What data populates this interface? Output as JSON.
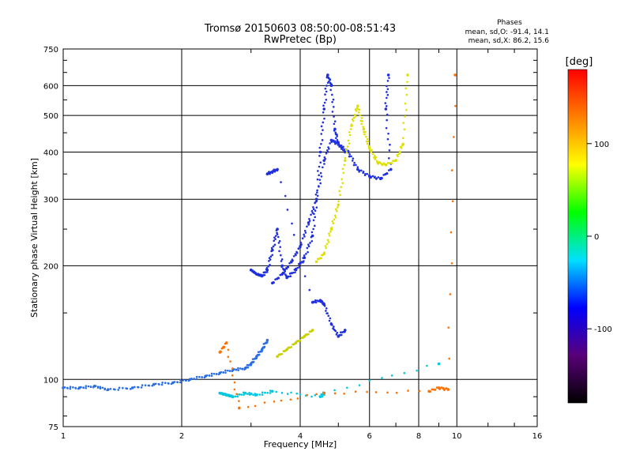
{
  "chart_data": {
    "type": "scatter",
    "title": "Tromsø 20150603 08:50:00-08:51:43",
    "subtitle": "RwPretec (Bp)",
    "xlabel": "Frequency [MHz]",
    "ylabel": "Stationary phase Virtual Height [km]",
    "x_scale": "log",
    "y_scale": "log",
    "xlim": [
      1,
      16
    ],
    "ylim": [
      75,
      750
    ],
    "x_ticks": [
      "1",
      "2",
      "4",
      "6",
      "8",
      "10",
      "16"
    ],
    "y_ticks": [
      "75",
      "100",
      "200",
      "300",
      "400",
      "500",
      "600",
      "750"
    ],
    "grid": true,
    "stats": {
      "heading": "Phases",
      "line_o": "mean, sd,O: -91.4, 14.1",
      "line_x": "mean, sd,X:  86.2, 15.6"
    },
    "colorbar": {
      "label": "[deg]",
      "range": [
        -180,
        180
      ],
      "ticks": [
        "100",
        "0",
        "-100"
      ],
      "colors": [
        "#000000",
        "#5a007a",
        "#0000ff",
        "#00e0ff",
        "#00ff00",
        "#ffff00",
        "#ff8000",
        "#ff0000"
      ]
    },
    "series": [
      {
        "phase": -100,
        "color": "#2a6ee6",
        "x": [
          1.0,
          1.1,
          1.2,
          1.3,
          1.5,
          1.7,
          1.9,
          2.1,
          2.3,
          2.5,
          2.7,
          2.9,
          3.0,
          3.1,
          3.2,
          3.3
        ],
        "y": [
          95,
          95,
          96,
          94,
          95,
          97,
          98,
          100,
          102,
          104,
          106,
          107,
          110,
          115,
          120,
          127
        ]
      },
      {
        "phase": -100,
        "color": "#1c2ee0",
        "x": [
          3.0,
          3.1,
          3.2,
          3.3,
          3.4,
          3.5,
          3.6,
          3.7,
          3.9,
          4.1,
          4.3,
          4.4,
          4.5,
          4.6,
          4.7,
          4.8,
          4.9,
          5.0,
          5.2
        ],
        "y": [
          195,
          190,
          188,
          195,
          220,
          250,
          200,
          186,
          195,
          210,
          240,
          300,
          400,
          520,
          640,
          600,
          460,
          420,
          400
        ]
      },
      {
        "phase": -100,
        "color": "#2030e0",
        "x": [
          3.4,
          3.6,
          3.8,
          4.0,
          4.2,
          4.4,
          4.6,
          4.8,
          5.0,
          5.3,
          5.6,
          6.0,
          6.4,
          6.8,
          6.6,
          6.7
        ],
        "y": [
          180,
          190,
          205,
          225,
          260,
          300,
          380,
          430,
          420,
          400,
          360,
          345,
          340,
          360,
          520,
          640
        ]
      },
      {
        "phase": 110,
        "color": "#e0e000",
        "x": [
          4.4,
          4.6,
          4.8,
          5.0,
          5.2,
          5.4,
          5.6,
          5.8,
          6.0,
          6.3,
          6.6,
          7.0,
          7.3,
          7.5
        ],
        "y": [
          205,
          215,
          250,
          290,
          380,
          470,
          530,
          460,
          410,
          375,
          370,
          380,
          420,
          640
        ]
      },
      {
        "phase": 110,
        "color": "#c8d000",
        "x": [
          3.5,
          3.7,
          3.9,
          4.1,
          4.3
        ],
        "y": [
          115,
          120,
          125,
          130,
          135
        ]
      },
      {
        "phase": -100,
        "color": "#2030e0",
        "x": [
          3.3,
          3.4,
          3.5,
          4.3,
          4.5,
          4.6,
          4.8,
          5.0,
          5.2
        ],
        "y": [
          350,
          355,
          360,
          160,
          162,
          158,
          140,
          130,
          135
        ]
      },
      {
        "phase": 0,
        "color": "#00c8e0",
        "x": [
          2.5,
          2.6,
          2.7,
          2.9,
          3.1,
          3.4,
          4.5,
          4.6,
          9.0
        ],
        "y": [
          92,
          91,
          90,
          92,
          91,
          93,
          90,
          92,
          110
        ]
      },
      {
        "phase": 150,
        "color": "#ff7000",
        "x": [
          2.5,
          2.6,
          2.8,
          4.6,
          8.5,
          9.0,
          9.5,
          9.9
        ],
        "y": [
          118,
          125,
          84,
          92,
          93,
          95,
          94,
          640
        ]
      }
    ]
  }
}
